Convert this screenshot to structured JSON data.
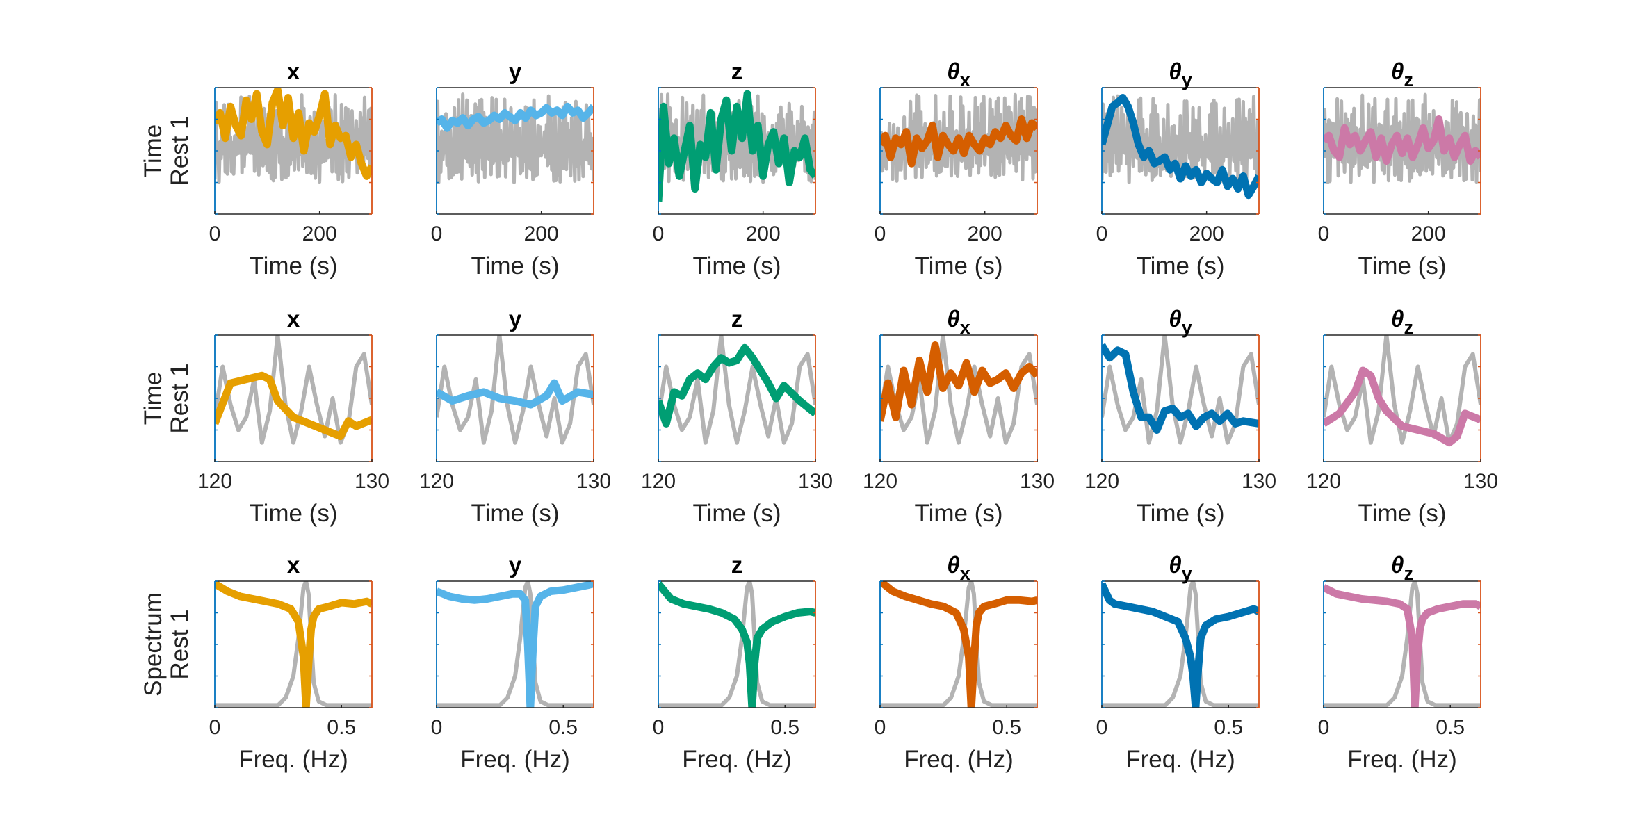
{
  "colors": {
    "reference": "#b3b3b3",
    "x": "#E69F00",
    "y": "#56B4E9",
    "z": "#009E73",
    "theta_x": "#D55E00",
    "theta_y": "#0072B2",
    "theta_z": "#CC79A7",
    "left_axis": "#0072BD",
    "right_axis": "#D95319",
    "frame": "#262626"
  },
  "column_titles": [
    {
      "main": "x",
      "sub": ""
    },
    {
      "main": "y",
      "sub": ""
    },
    {
      "main": "z",
      "sub": ""
    },
    {
      "main": "θ",
      "sub": "x"
    },
    {
      "main": "θ",
      "sub": "y"
    },
    {
      "main": "θ",
      "sub": "z"
    }
  ],
  "rows": [
    {
      "label_line1": "Time",
      "label_line2": "Rest 1",
      "xlabel": "Time (s)",
      "xlim": [
        0,
        300
      ],
      "xticks": [
        0,
        200
      ],
      "xtick_labels": [
        "0",
        "200"
      ]
    },
    {
      "label_line1": "Time",
      "label_line2": "Rest 1",
      "xlabel": "Time (s)",
      "xlim": [
        120,
        130
      ],
      "xticks": [
        120,
        130
      ],
      "xtick_labels": [
        "120",
        "130"
      ]
    },
    {
      "label_line1": "Spectrum",
      "label_line2": "Rest 1",
      "xlabel": "Freq. (Hz)",
      "xlim": [
        0,
        0.62
      ],
      "xticks": [
        0,
        0.5
      ],
      "xtick_labels": [
        "0",
        "0.5"
      ]
    }
  ],
  "chart_data": [
    {
      "type": "line",
      "row": "Time / Rest 1 (full)",
      "xlabel": "Time (s)",
      "xlim": [
        0,
        300
      ],
      "ylim": [
        0,
        1
      ],
      "reference": {
        "kind": "noise",
        "x_start": 0,
        "x_end": 300,
        "level_low": 0.2,
        "level_high": 0.95
      },
      "series": [
        {
          "x": [
            0,
            10,
            20,
            30,
            40,
            50,
            60,
            70,
            80,
            90,
            100,
            110,
            120,
            130,
            140,
            150,
            160,
            170,
            180,
            190,
            200,
            210,
            220,
            230,
            240,
            250,
            260,
            270,
            280,
            290,
            300
          ],
          "values": [
            0.72,
            0.8,
            0.6,
            0.85,
            0.7,
            0.62,
            0.9,
            0.75,
            0.95,
            0.65,
            0.55,
            0.88,
            0.98,
            0.7,
            0.92,
            0.6,
            0.8,
            0.5,
            0.72,
            0.65,
            0.78,
            0.95,
            0.55,
            0.7,
            0.6,
            0.62,
            0.45,
            0.55,
            0.4,
            0.3,
            0.38
          ]
        },
        {
          "x": [
            0,
            10,
            20,
            30,
            40,
            50,
            60,
            70,
            80,
            90,
            100,
            110,
            120,
            130,
            140,
            150,
            160,
            170,
            180,
            190,
            200,
            210,
            220,
            230,
            240,
            250,
            260,
            270,
            280,
            290,
            300
          ],
          "values": [
            0.72,
            0.75,
            0.68,
            0.74,
            0.72,
            0.76,
            0.7,
            0.75,
            0.77,
            0.72,
            0.74,
            0.78,
            0.75,
            0.8,
            0.77,
            0.74,
            0.8,
            0.76,
            0.82,
            0.78,
            0.8,
            0.84,
            0.8,
            0.82,
            0.78,
            0.85,
            0.8,
            0.82,
            0.76,
            0.8,
            0.85
          ]
        },
        {
          "x": [
            0,
            10,
            20,
            30,
            40,
            50,
            60,
            70,
            80,
            90,
            100,
            110,
            120,
            130,
            140,
            150,
            160,
            170,
            180,
            190,
            200,
            210,
            220,
            230,
            240,
            250,
            260,
            270,
            280,
            290,
            300
          ],
          "values": [
            0.1,
            0.85,
            0.4,
            0.6,
            0.3,
            0.5,
            0.7,
            0.2,
            0.55,
            0.45,
            0.8,
            0.35,
            0.75,
            0.9,
            0.5,
            0.85,
            0.6,
            0.95,
            0.5,
            0.7,
            0.3,
            0.55,
            0.65,
            0.4,
            0.6,
            0.25,
            0.5,
            0.45,
            0.6,
            0.35,
            0.3
          ]
        },
        {
          "x": [
            0,
            10,
            20,
            30,
            40,
            50,
            60,
            70,
            80,
            90,
            100,
            110,
            120,
            130,
            140,
            150,
            160,
            170,
            180,
            190,
            200,
            210,
            220,
            230,
            240,
            250,
            260,
            270,
            280,
            290,
            300
          ],
          "values": [
            0.55,
            0.62,
            0.45,
            0.6,
            0.55,
            0.65,
            0.4,
            0.6,
            0.52,
            0.58,
            0.7,
            0.45,
            0.62,
            0.55,
            0.5,
            0.6,
            0.48,
            0.62,
            0.55,
            0.5,
            0.6,
            0.55,
            0.65,
            0.6,
            0.7,
            0.62,
            0.58,
            0.75,
            0.6,
            0.72,
            0.68
          ]
        },
        {
          "x": [
            0,
            10,
            20,
            30,
            40,
            50,
            60,
            70,
            80,
            90,
            100,
            110,
            120,
            130,
            140,
            150,
            160,
            170,
            180,
            190,
            200,
            210,
            220,
            230,
            240,
            250,
            260,
            270,
            280,
            290,
            300
          ],
          "values": [
            0.55,
            0.7,
            0.85,
            0.88,
            0.92,
            0.85,
            0.72,
            0.55,
            0.45,
            0.5,
            0.4,
            0.42,
            0.45,
            0.35,
            0.4,
            0.28,
            0.38,
            0.3,
            0.35,
            0.25,
            0.32,
            0.28,
            0.25,
            0.35,
            0.22,
            0.28,
            0.2,
            0.3,
            0.15,
            0.22,
            0.3
          ]
        },
        {
          "x": [
            0,
            10,
            20,
            30,
            40,
            50,
            60,
            70,
            80,
            90,
            100,
            110,
            120,
            130,
            140,
            150,
            160,
            170,
            180,
            190,
            200,
            210,
            220,
            230,
            240,
            250,
            260,
            270,
            280,
            290,
            300
          ],
          "values": [
            0.58,
            0.62,
            0.5,
            0.45,
            0.68,
            0.55,
            0.62,
            0.5,
            0.58,
            0.65,
            0.45,
            0.6,
            0.42,
            0.55,
            0.62,
            0.48,
            0.6,
            0.45,
            0.55,
            0.68,
            0.52,
            0.58,
            0.75,
            0.5,
            0.6,
            0.45,
            0.55,
            0.62,
            0.42,
            0.5,
            0.45
          ]
        }
      ]
    },
    {
      "type": "line",
      "row": "Time / Rest 1 (zoom)",
      "xlabel": "Time (s)",
      "xlim": [
        120,
        130
      ],
      "ylim": [
        0,
        1
      ],
      "reference": {
        "x": [
          120,
          120.5,
          121,
          121.5,
          122,
          122.5,
          123,
          123.5,
          124,
          124.5,
          125,
          125.5,
          126,
          126.5,
          127,
          127.5,
          128,
          128.5,
          129,
          129.5,
          130
        ],
        "values": [
          0.35,
          0.75,
          0.45,
          0.25,
          0.35,
          0.65,
          0.15,
          0.4,
          1.0,
          0.45,
          0.15,
          0.4,
          0.75,
          0.45,
          0.2,
          0.5,
          0.15,
          0.3,
          0.75,
          0.85,
          0.45
        ]
      },
      "series": [
        {
          "x": [
            120,
            121,
            122,
            123,
            123.5,
            124,
            125,
            126,
            127,
            128,
            128.5,
            129,
            130
          ],
          "values": [
            0.3,
            0.62,
            0.65,
            0.68,
            0.65,
            0.48,
            0.35,
            0.3,
            0.25,
            0.2,
            0.32,
            0.28,
            0.33
          ]
        },
        {
          "x": [
            120,
            121,
            122,
            123,
            124,
            125,
            126,
            127,
            127.5,
            128,
            129,
            130
          ],
          "values": [
            0.55,
            0.48,
            0.52,
            0.55,
            0.5,
            0.48,
            0.45,
            0.52,
            0.62,
            0.48,
            0.55,
            0.53
          ]
        },
        {
          "x": [
            120,
            120.5,
            121,
            121.5,
            122,
            122.5,
            123,
            123.5,
            124,
            124.5,
            125,
            125.5,
            126,
            126.5,
            127,
            127.5,
            128,
            129,
            130
          ],
          "values": [
            0.48,
            0.3,
            0.55,
            0.52,
            0.65,
            0.7,
            0.65,
            0.75,
            0.82,
            0.78,
            0.8,
            0.9,
            0.82,
            0.72,
            0.62,
            0.5,
            0.6,
            0.48,
            0.38
          ]
        },
        {
          "x": [
            120,
            120.5,
            121,
            121.5,
            122,
            122.5,
            123,
            123.5,
            124,
            124.5,
            125,
            125.5,
            126,
            126.5,
            127,
            127.5,
            128,
            128.5,
            129,
            129.5,
            130
          ],
          "values": [
            0.32,
            0.62,
            0.35,
            0.72,
            0.45,
            0.8,
            0.55,
            0.92,
            0.58,
            0.7,
            0.6,
            0.78,
            0.55,
            0.72,
            0.62,
            0.65,
            0.7,
            0.58,
            0.7,
            0.75,
            0.68
          ]
        },
        {
          "x": [
            120,
            120.5,
            121,
            121.5,
            122,
            122.5,
            123,
            123.5,
            124,
            124.5,
            125,
            125.5,
            126,
            126.5,
            127,
            127.5,
            128,
            128.5,
            129,
            130
          ],
          "values": [
            0.92,
            0.82,
            0.88,
            0.85,
            0.55,
            0.35,
            0.35,
            0.25,
            0.4,
            0.42,
            0.35,
            0.38,
            0.28,
            0.35,
            0.38,
            0.32,
            0.38,
            0.3,
            0.32,
            0.3
          ]
        },
        {
          "x": [
            120,
            121,
            122,
            122.5,
            123,
            123.5,
            124,
            125,
            126,
            127,
            128,
            128.5,
            129,
            130
          ],
          "values": [
            0.3,
            0.38,
            0.55,
            0.72,
            0.68,
            0.5,
            0.4,
            0.28,
            0.25,
            0.22,
            0.15,
            0.2,
            0.38,
            0.33
          ]
        }
      ]
    },
    {
      "type": "line",
      "row": "Spectrum / Rest 1",
      "xlabel": "Freq. (Hz)",
      "xlim": [
        0,
        0.62
      ],
      "ylim": [
        0,
        1
      ],
      "reference": {
        "x": [
          0,
          0.25,
          0.28,
          0.31,
          0.33,
          0.35,
          0.36,
          0.37,
          0.38,
          0.39,
          0.41,
          0.44,
          0.5,
          0.62
        ],
        "values": [
          0.02,
          0.02,
          0.08,
          0.25,
          0.55,
          0.95,
          1.0,
          0.9,
          0.55,
          0.2,
          0.05,
          0.02,
          0.02,
          0.02
        ]
      },
      "series": [
        {
          "x": [
            0,
            0.05,
            0.1,
            0.15,
            0.2,
            0.25,
            0.3,
            0.33,
            0.35,
            0.36,
            0.37,
            0.38,
            0.39,
            0.41,
            0.45,
            0.5,
            0.55,
            0.6,
            0.62
          ],
          "values": [
            0.98,
            0.92,
            0.88,
            0.86,
            0.84,
            0.82,
            0.78,
            0.68,
            0.4,
            0.0,
            0.35,
            0.62,
            0.72,
            0.78,
            0.8,
            0.83,
            0.82,
            0.84,
            0.82
          ]
        },
        {
          "x": [
            0,
            0.05,
            0.1,
            0.15,
            0.2,
            0.25,
            0.3,
            0.33,
            0.35,
            0.36,
            0.37,
            0.38,
            0.39,
            0.41,
            0.45,
            0.5,
            0.55,
            0.6,
            0.62
          ],
          "values": [
            0.92,
            0.88,
            0.86,
            0.85,
            0.86,
            0.88,
            0.9,
            0.9,
            0.85,
            0.5,
            0.0,
            0.45,
            0.8,
            0.88,
            0.92,
            0.93,
            0.95,
            0.97,
            0.98
          ]
        },
        {
          "x": [
            0,
            0.05,
            0.1,
            0.15,
            0.2,
            0.25,
            0.3,
            0.33,
            0.35,
            0.36,
            0.37,
            0.38,
            0.39,
            0.41,
            0.45,
            0.5,
            0.55,
            0.6,
            0.62
          ],
          "values": [
            0.98,
            0.86,
            0.82,
            0.8,
            0.78,
            0.75,
            0.7,
            0.62,
            0.52,
            0.35,
            0.0,
            0.35,
            0.55,
            0.62,
            0.68,
            0.72,
            0.75,
            0.76,
            0.75
          ]
        },
        {
          "x": [
            0,
            0.05,
            0.1,
            0.15,
            0.2,
            0.25,
            0.3,
            0.33,
            0.35,
            0.36,
            0.37,
            0.38,
            0.39,
            0.41,
            0.45,
            0.5,
            0.55,
            0.6,
            0.62
          ],
          "values": [
            1.0,
            0.92,
            0.88,
            0.85,
            0.82,
            0.8,
            0.75,
            0.62,
            0.4,
            0.0,
            0.35,
            0.65,
            0.75,
            0.8,
            0.82,
            0.85,
            0.85,
            0.84,
            0.85
          ]
        },
        {
          "x": [
            0,
            0.03,
            0.05,
            0.1,
            0.15,
            0.2,
            0.25,
            0.3,
            0.33,
            0.35,
            0.36,
            0.37,
            0.38,
            0.39,
            0.41,
            0.45,
            0.5,
            0.55,
            0.6,
            0.62
          ],
          "values": [
            0.98,
            0.85,
            0.82,
            0.8,
            0.78,
            0.76,
            0.72,
            0.68,
            0.55,
            0.4,
            0.25,
            0.0,
            0.3,
            0.55,
            0.65,
            0.7,
            0.72,
            0.75,
            0.78,
            0.76
          ]
        },
        {
          "x": [
            0,
            0.05,
            0.1,
            0.15,
            0.2,
            0.25,
            0.3,
            0.33,
            0.35,
            0.36,
            0.37,
            0.38,
            0.39,
            0.41,
            0.45,
            0.5,
            0.55,
            0.6,
            0.62
          ],
          "values": [
            0.95,
            0.9,
            0.88,
            0.86,
            0.85,
            0.84,
            0.82,
            0.78,
            0.55,
            0.0,
            0.4,
            0.62,
            0.7,
            0.75,
            0.78,
            0.8,
            0.82,
            0.82,
            0.8
          ]
        }
      ]
    }
  ]
}
